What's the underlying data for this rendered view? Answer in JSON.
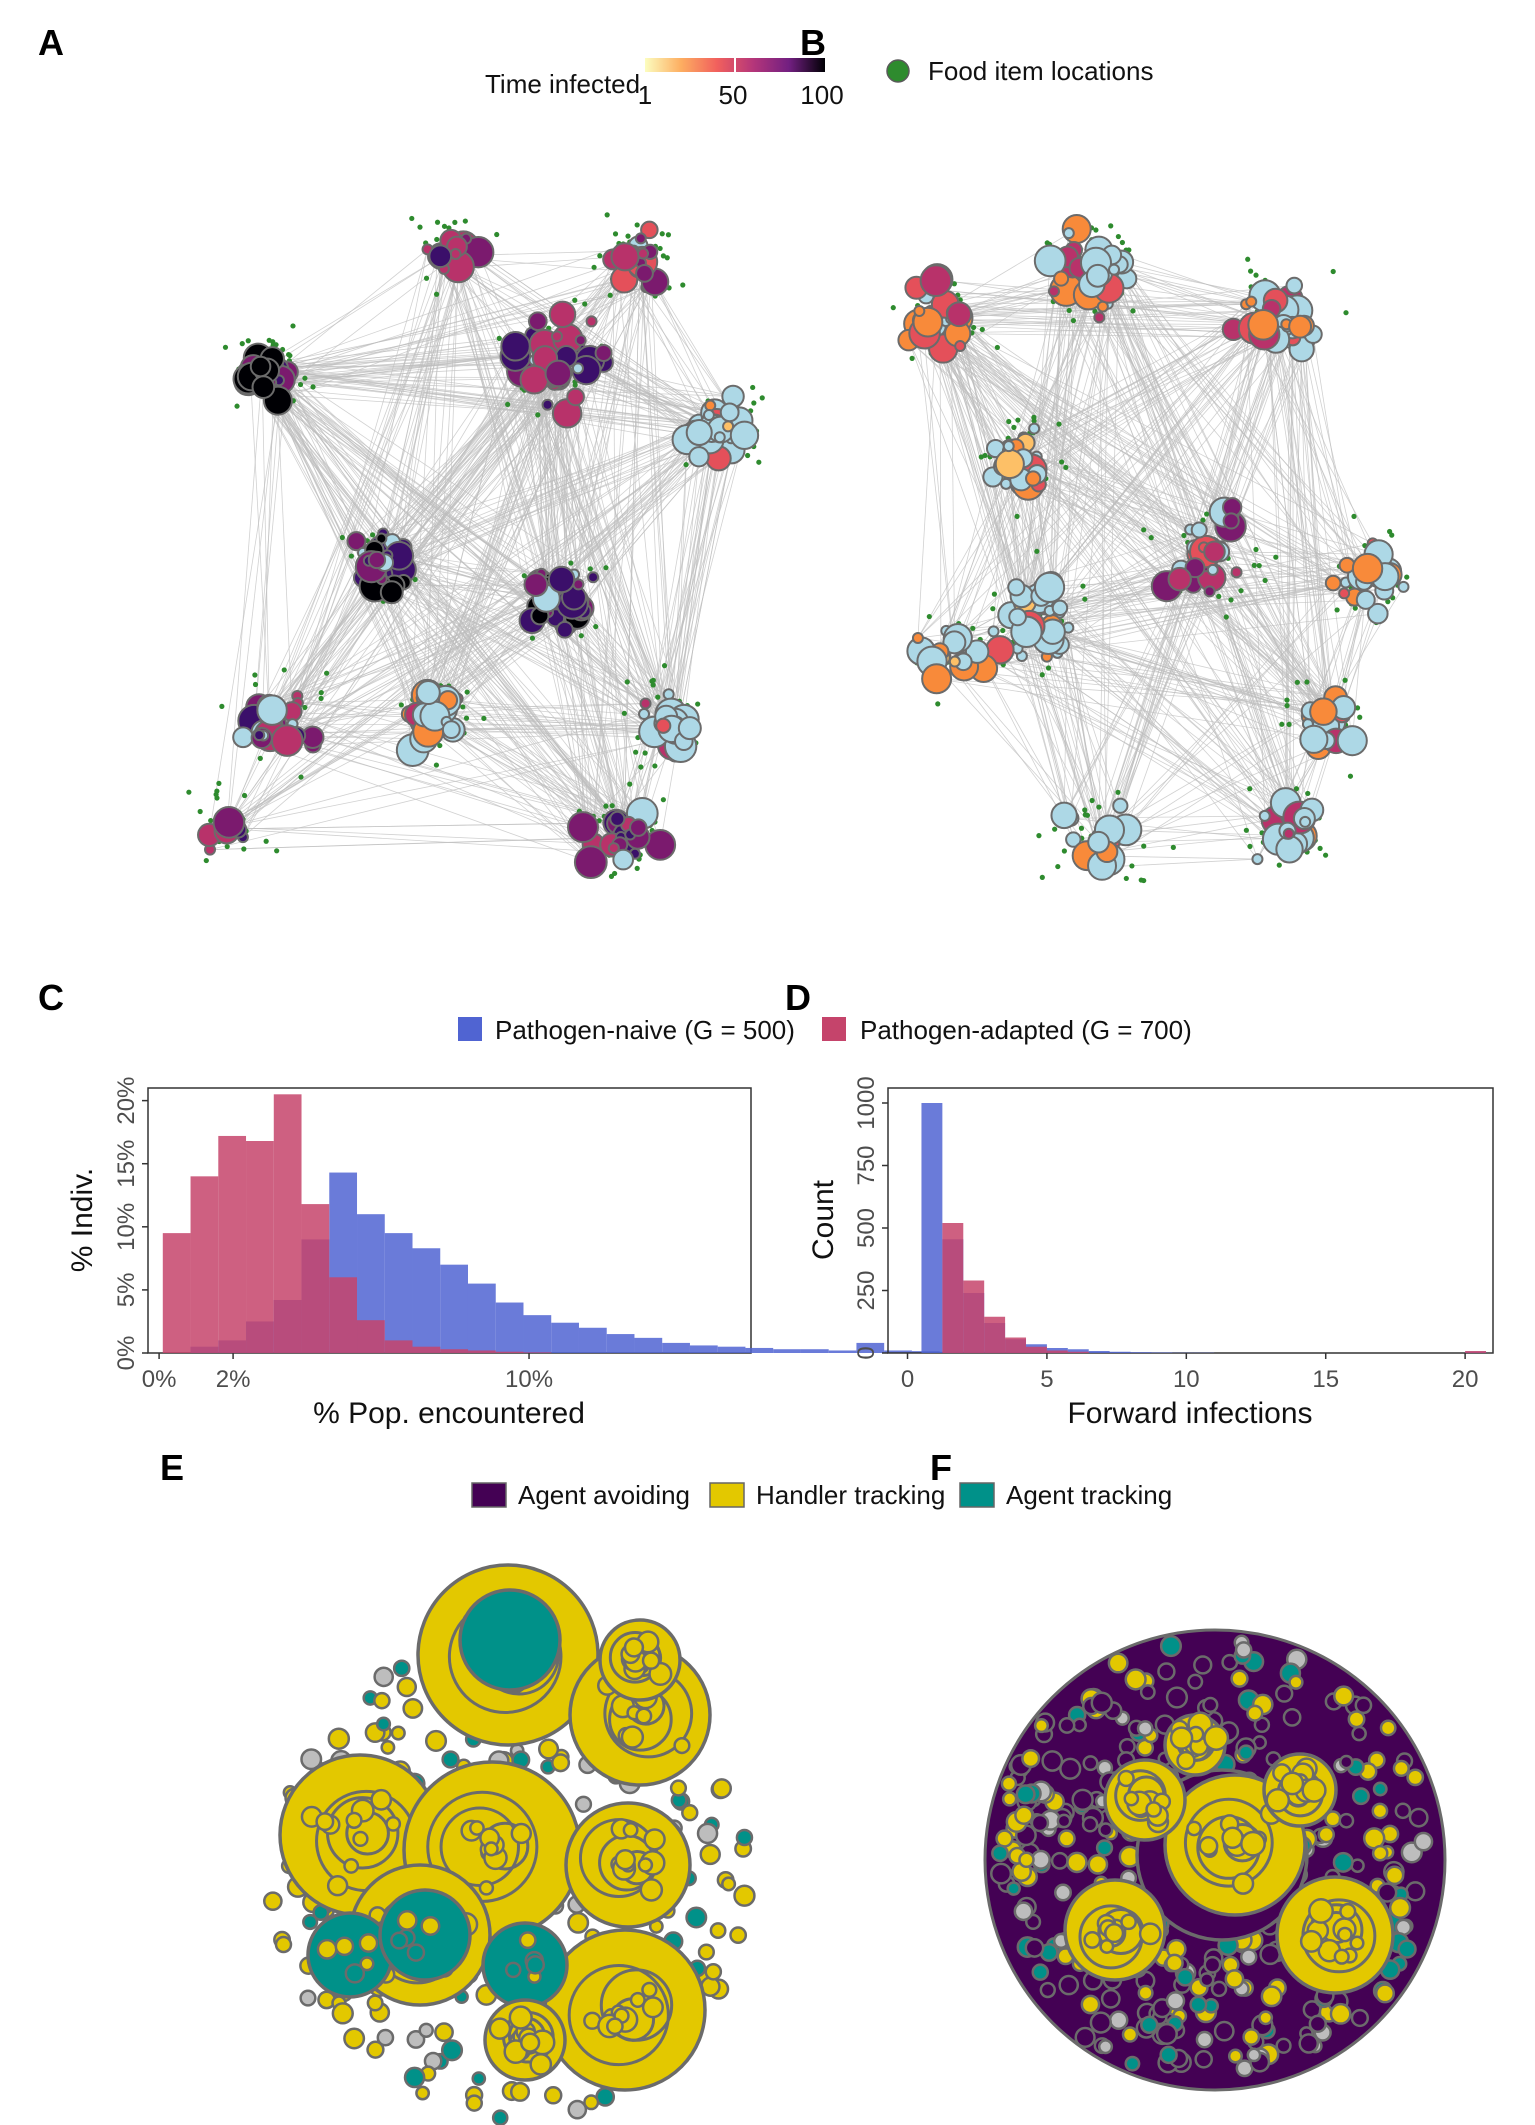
{
  "panels": {
    "a": "A",
    "b": "B",
    "c": "C",
    "d": "D",
    "e": "E",
    "f": "F"
  },
  "legend_top": {
    "time_title": "Time infected",
    "time_ticks": [
      "1",
      "50",
      "100"
    ],
    "food_label": "Food item locations",
    "colors": {
      "food": "#2e8b2e",
      "uninfected": "#add8e6",
      "edge": "#bdbdbd",
      "outline": "#6b6b6b"
    },
    "time_palette": [
      "#fcfdbf",
      "#fdc067",
      "#f88a3a",
      "#e4505a",
      "#b8326a",
      "#7b1a6e",
      "#3b0f6a",
      "#000004"
    ]
  },
  "legend_mid": {
    "naive_label": "Pathogen-naive (G = 500)",
    "adapted_label": "Pathogen-adapted (G = 700)",
    "naive_color": "#5064d2",
    "adapted_color": "#c5446b"
  },
  "legend_bottom": {
    "items": [
      "Agent avoiding",
      "Handler tracking",
      "Agent tracking"
    ],
    "colors": [
      "#440154",
      "#e3c800",
      "#009189"
    ]
  },
  "chart_data": [
    {
      "type": "bar",
      "panel": "C",
      "xlabel": "% Pop. encountered",
      "ylabel": "% Indiv.",
      "x_ticks": [
        "0%",
        "2%",
        "10%"
      ],
      "y_ticks": [
        "0%",
        "5%",
        "10%",
        "15%",
        "20%"
      ],
      "xlim": [
        -0.3,
        16.0
      ],
      "ylim": [
        0,
        21
      ],
      "bin_width": 0.75,
      "bin_start": 0.1,
      "series": [
        {
          "name": "Pathogen-naive (G = 500)",
          "values": [
            0,
            0.5,
            1.0,
            2.5,
            4.2,
            9.0,
            14.3,
            11.0,
            9.5,
            8.3,
            7.0,
            5.5,
            4.0,
            3.0,
            2.4,
            2.0,
            1.5,
            1.2,
            0.8,
            0.6,
            0.5,
            0.4,
            0.3,
            0.3,
            0.2,
            0.8,
            0.2,
            0.15,
            0.1,
            0.1,
            0.05,
            0.05,
            0.05,
            0
          ]
        },
        {
          "name": "Pathogen-adapted (G = 700)",
          "values": [
            9.5,
            14.0,
            17.2,
            16.8,
            20.5,
            11.8,
            6.0,
            2.6,
            1.0,
            0.5,
            0.3,
            0.2,
            0.1,
            0.05,
            0,
            0,
            0,
            0,
            0,
            0,
            0,
            0,
            0,
            0,
            0,
            0,
            0,
            0,
            0,
            0,
            0,
            0,
            0,
            0
          ]
        }
      ]
    },
    {
      "type": "bar",
      "panel": "D",
      "xlabel": "Forward infections",
      "ylabel": "Count",
      "x_ticks": [
        "0",
        "5",
        "10",
        "15",
        "20"
      ],
      "y_ticks": [
        "0",
        "250",
        "500",
        "750",
        "1000"
      ],
      "xlim": [
        -0.7,
        21.0
      ],
      "ylim": [
        0,
        1060
      ],
      "bin_width": 0.75,
      "bin_start": 0.5,
      "series": [
        {
          "name": "Pathogen-naive (G = 500)",
          "values": [
            1000,
            455,
            240,
            120,
            55,
            35,
            20,
            15,
            8,
            5,
            3,
            2,
            1,
            1,
            0,
            0,
            0,
            0,
            0,
            0,
            0,
            0,
            0,
            0,
            0,
            0,
            5
          ]
        },
        {
          "name": "Pathogen-adapted (G = 700)",
          "values": [
            0,
            520,
            290,
            145,
            62,
            25,
            10,
            5,
            0,
            0,
            0,
            0,
            0,
            0,
            0,
            0,
            0,
            0,
            0,
            0,
            0,
            0,
            0,
            0,
            0,
            0,
            8
          ]
        }
      ]
    }
  ]
}
